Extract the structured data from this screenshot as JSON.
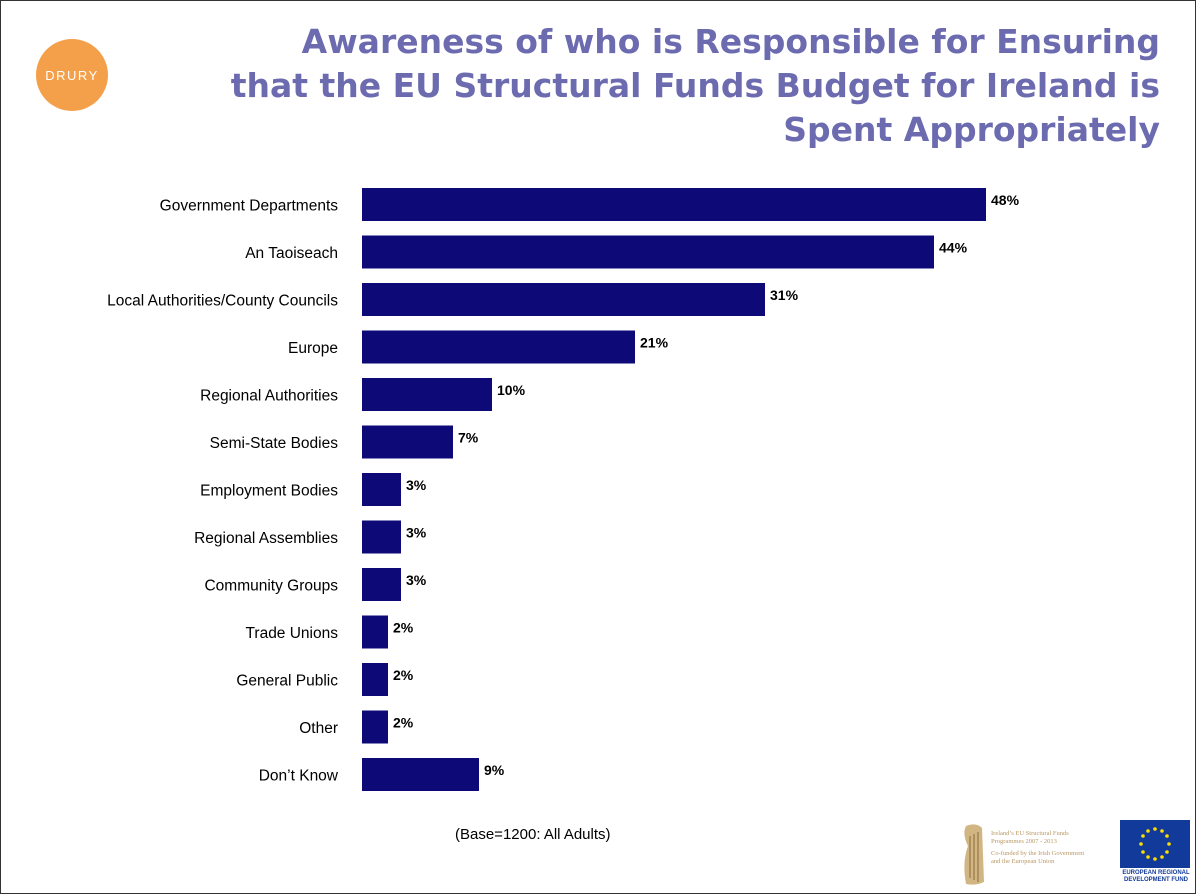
{
  "brand": {
    "logo_text": "DRURY",
    "logo_color": "#f4a04a",
    "title_color": "#6c6bb0",
    "bar_color": "#0d0a78"
  },
  "chart_data": {
    "type": "bar",
    "orientation": "horizontal",
    "title_lines": [
      "Awareness of who is Responsible for Ensuring",
      "that the EU Structural Funds Budget for Ireland is",
      "Spent Appropriately"
    ],
    "categories": [
      "Government  Departments",
      "An Taoiseach",
      "Local Authorities/County Councils",
      "Europe",
      "Regional Authorities",
      "Semi-State Bodies",
      "Employment Bodies",
      "Regional Assemblies",
      "Community Groups",
      "Trade Unions",
      "General Public",
      "Other",
      "Don’t Know"
    ],
    "values": [
      48,
      44,
      31,
      21,
      10,
      7,
      3,
      3,
      3,
      2,
      2,
      2,
      9
    ],
    "value_labels": [
      "48%",
      "44%",
      "31%",
      "21%",
      "10%",
      "7%",
      "3%",
      "3%",
      "3%",
      "2%",
      "2%",
      "2%",
      "9%"
    ],
    "unit": "%",
    "xlim": [
      0,
      48
    ],
    "grid": false,
    "footnote": "(Base=1200: All Adults)"
  },
  "branding": {
    "ireland_line_1": "Ireland’s EU Structural Funds",
    "ireland_line_2": "Programmes 2007 - 2013",
    "ireland_line_3": "Co-funded by the Irish Government",
    "ireland_line_4": "and the European Union",
    "eu_line_1": "EUROPEAN REGIONAL",
    "eu_line_2": "DEVELOPMENT FUND"
  }
}
